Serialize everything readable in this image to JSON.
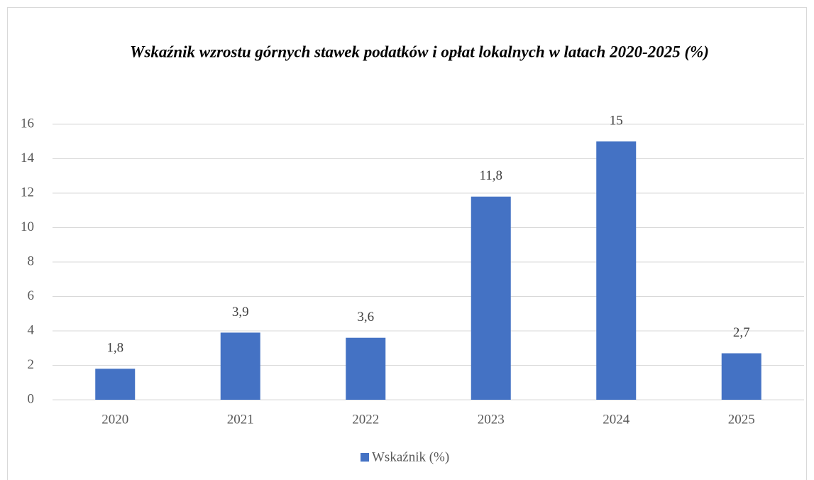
{
  "chart_data": {
    "type": "bar",
    "title": "Wskaźnik wzrostu górnych stawek podatków i opłat lokalnych w latach 2020-2025 (%)",
    "categories": [
      "2020",
      "2021",
      "2022",
      "2023",
      "2024",
      "2025"
    ],
    "series": [
      {
        "name": "Wskaźnik (%)",
        "color": "#4472c4",
        "values": [
          1.8,
          3.9,
          3.6,
          11.8,
          15,
          2.7
        ],
        "value_labels": [
          "1,8",
          "3,9",
          "3,6",
          "11,8",
          "15",
          "2,7"
        ]
      }
    ],
    "ylim": [
      0,
      16
    ],
    "yticks": [
      0,
      2,
      4,
      6,
      8,
      10,
      12,
      14,
      16
    ],
    "grid": true,
    "legend": "bottom"
  }
}
